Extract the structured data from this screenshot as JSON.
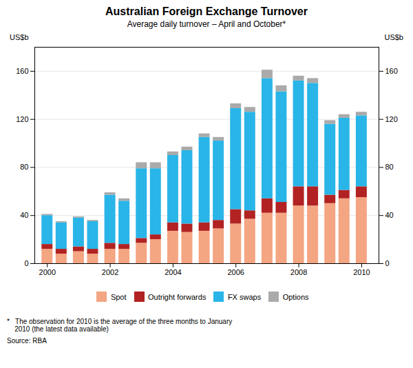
{
  "chart_data": {
    "type": "bar",
    "title": "Australian Foreign Exchange Turnover",
    "subtitle": "Average daily turnover – April and October*",
    "ylabel": "US$b",
    "y2label": "US$b",
    "footnote": "*   The observation for 2010 is the average of the three months to January\n    2010 (the latest data available)",
    "source": "Source: RBA",
    "stacked": true,
    "grid": true,
    "legend": "bottom",
    "x": [
      2000.0,
      2000.45,
      2001.0,
      2001.45,
      2002.0,
      2002.45,
      2003.0,
      2003.45,
      2004.0,
      2004.45,
      2005.0,
      2005.45,
      2006.0,
      2006.45,
      2007.0,
      2007.45,
      2008.0,
      2008.45,
      2009.0,
      2009.45,
      2010.0
    ],
    "xlim": [
      1999.6,
      2010.55
    ],
    "xticks": [
      2000,
      2002,
      2004,
      2006,
      2008,
      2010
    ],
    "ylim": [
      0,
      180
    ],
    "yticks": [
      0,
      40,
      80,
      120,
      160
    ],
    "series": [
      {
        "name": "Spot",
        "color": "#F4A582",
        "values": [
          12,
          8,
          10,
          8,
          12,
          12,
          17,
          20,
          27,
          26,
          27,
          29,
          33,
          37,
          42,
          42,
          48,
          48,
          50,
          54,
          55
        ]
      },
      {
        "name": "Outright forwards",
        "color": "#B22222",
        "values": [
          4,
          4,
          4,
          4,
          5,
          4,
          4,
          4,
          7,
          7,
          7,
          7,
          12,
          7,
          12,
          9,
          16,
          16,
          7,
          7,
          9
        ]
      },
      {
        "name": "FX swaps",
        "color": "#29B5E8",
        "values": [
          24,
          22,
          24,
          23,
          40,
          36,
          58,
          55,
          56,
          61,
          71,
          66,
          84,
          82,
          100,
          92,
          88,
          86,
          59,
          60,
          59
        ]
      },
      {
        "name": "Options",
        "color": "#AAAAAA",
        "values": [
          1,
          1,
          1,
          1,
          2,
          2,
          5,
          5,
          3,
          3,
          3,
          3,
          4,
          4,
          7,
          5,
          4,
          4,
          3,
          3,
          3
        ]
      }
    ]
  }
}
